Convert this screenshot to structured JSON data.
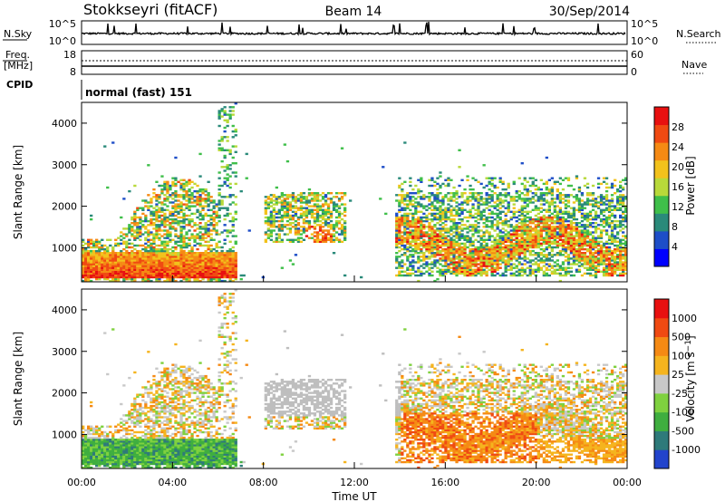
{
  "header": {
    "station": "Stokkseyri (fitACF)",
    "beam": "Beam 14",
    "date": "30/Sep/2014"
  },
  "top_panels": {
    "nsky_label": "N.Sky",
    "nsky_ticks": [
      "10^5",
      "10^0"
    ],
    "nsearch_label": "N.Search",
    "nsearch_ticks": [
      "10^5",
      "10^0"
    ],
    "freq_label": "Freq.",
    "freq_unit": "[MHz]",
    "freq_ticks": [
      "18",
      "8"
    ],
    "nave_label": "Nave",
    "nave_ticks": [
      "60",
      "0"
    ],
    "cpid_label": "CPID",
    "cpid_value": "normal (fast) 151"
  },
  "chart_data": [
    {
      "type": "heatmap",
      "ylabel": "Slant Range [km]",
      "xlabel": "Time UT",
      "ylim": [
        180,
        4500
      ],
      "xlim": [
        0,
        24
      ],
      "x_ticks": [
        "00:00",
        "04:00",
        "08:00",
        "12:00",
        "16:00",
        "20:00",
        "00:00"
      ],
      "y_ticks": [
        "1000",
        "2000",
        "3000",
        "4000"
      ],
      "colorbar": {
        "label": "Power [dB]",
        "ticks": [
          "28",
          "24",
          "20",
          "16",
          "12",
          "8",
          "4"
        ],
        "range": [
          0,
          30
        ],
        "colors": [
          "#0000ff",
          "#1e4ec8",
          "#2a8a7a",
          "#3fbf4a",
          "#b8d93a",
          "#f2c21c",
          "#f58a14",
          "#f04a12",
          "#e81010"
        ]
      },
      "echo_regions": [
        {
          "t": [
            0.0,
            6.8
          ],
          "r": [
            250,
            2700
          ],
          "level": "high near range, low far"
        },
        {
          "t": [
            8.0,
            11.5
          ],
          "r": [
            1200,
            2400
          ],
          "level": "moderate"
        },
        {
          "t": [
            13.8,
            24.0
          ],
          "r": [
            300,
            2700
          ],
          "level": "mixed"
        }
      ]
    },
    {
      "type": "heatmap",
      "ylabel": "Slant Range [km]",
      "xlabel": "Time UT",
      "ylim": [
        180,
        4500
      ],
      "xlim": [
        0,
        24
      ],
      "x_ticks": [
        "00:00",
        "04:00",
        "08:00",
        "12:00",
        "16:00",
        "20:00",
        "00:00"
      ],
      "y_ticks": [
        "1000",
        "2000",
        "3000",
        "4000"
      ],
      "colorbar": {
        "label": "Velocity [m s^-1]",
        "ticks": [
          "1000",
          "500",
          "100",
          "25",
          "-25",
          "-100",
          "-500",
          "-1000"
        ],
        "range": [
          -1000,
          1000
        ],
        "colors": [
          "#2244cc",
          "#2e7a7a",
          "#3fae3f",
          "#7fd13f",
          "#c8c8c8",
          "#f5b41e",
          "#f58a14",
          "#f04a12",
          "#e81010"
        ],
        "ground_scatter_color": "#bebebe"
      }
    }
  ]
}
